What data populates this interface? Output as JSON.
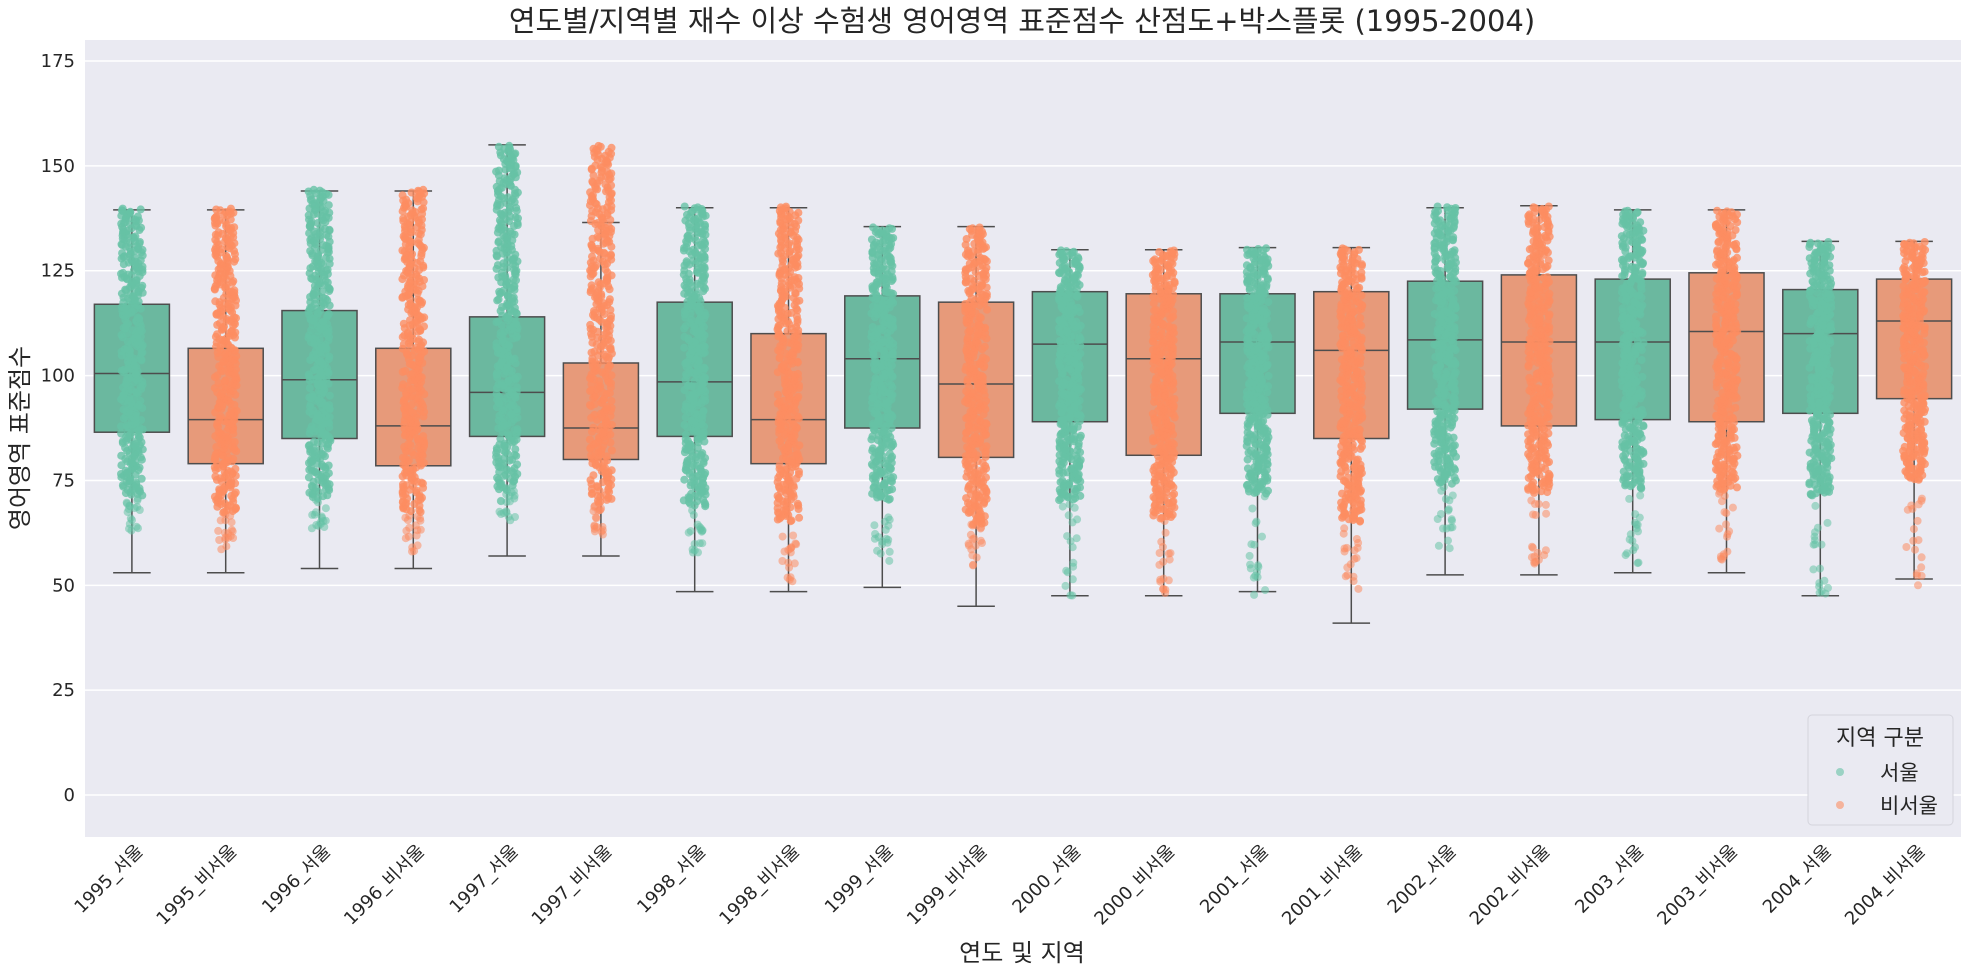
{
  "chart_data": {
    "type": "box+strip",
    "title": "연도별/지역별 재수 이상 수험생 영어영역 표준점수 산점도+박스플롯 (1995-2004)",
    "xlabel": "연도 및 지역",
    "ylabel": "영어영역 표준점수",
    "ylim": [
      -10,
      180
    ],
    "yticks": [
      0,
      25,
      50,
      75,
      100,
      125,
      150,
      175
    ],
    "grid": true,
    "legend": {
      "title": "지역 구분",
      "placement": "bottom-right",
      "entries": [
        {
          "label": "서울",
          "color": "#66c2a5"
        },
        {
          "label": "비서울",
          "color": "#fc8d62"
        }
      ]
    },
    "colors": {
      "seoul_point": "#66c2a5",
      "seoul_box": "#6bb89f",
      "nonseoul_point": "#fc8d62",
      "nonseoul_box": "#e79a7a",
      "background": "#eaeaf2",
      "whisker": "#4d4d4d"
    },
    "categories": [
      {
        "label": "1995_서울",
        "group": "서울",
        "whislo": 53,
        "q1": 86.5,
        "median": 100.5,
        "q3": 117,
        "whishi": 139.5,
        "pt_min": 62,
        "pt_max": 140
      },
      {
        "label": "1995_비서울",
        "group": "비서울",
        "whislo": 53,
        "q1": 79,
        "median": 89.5,
        "q3": 106.5,
        "whishi": 139.5,
        "pt_min": 58,
        "pt_max": 140
      },
      {
        "label": "1996_서울",
        "group": "서울",
        "whislo": 54,
        "q1": 85,
        "median": 99,
        "q3": 115.5,
        "whishi": 144,
        "pt_min": 63,
        "pt_max": 144.5
      },
      {
        "label": "1996_비서울",
        "group": "비서울",
        "whislo": 54,
        "q1": 78.5,
        "median": 88,
        "q3": 106.5,
        "whishi": 144,
        "pt_min": 56,
        "pt_max": 144.5
      },
      {
        "label": "1997_서울",
        "group": "서울",
        "whislo": 57,
        "q1": 85.5,
        "median": 96,
        "q3": 114,
        "whishi": 155,
        "pt_min": 65,
        "pt_max": 155
      },
      {
        "label": "1997_비서울",
        "group": "비서울",
        "whislo": 57,
        "q1": 80,
        "median": 87.5,
        "q3": 103,
        "whishi": 136.5,
        "pt_min": 62,
        "pt_max": 155
      },
      {
        "label": "1998_서울",
        "group": "서울",
        "whislo": 48.5,
        "q1": 85.5,
        "median": 98.5,
        "q3": 117.5,
        "whishi": 140,
        "pt_min": 57,
        "pt_max": 140.5
      },
      {
        "label": "1998_비서울",
        "group": "비서울",
        "whislo": 48.5,
        "q1": 79,
        "median": 89.5,
        "q3": 110,
        "whishi": 140,
        "pt_min": 48.5,
        "pt_max": 140.5
      },
      {
        "label": "1999_서울",
        "group": "서울",
        "whislo": 49.5,
        "q1": 87.5,
        "median": 104,
        "q3": 119,
        "whishi": 135.5,
        "pt_min": 55,
        "pt_max": 135.5
      },
      {
        "label": "1999_비서울",
        "group": "비서울",
        "whislo": 45,
        "q1": 80.5,
        "median": 98,
        "q3": 117.5,
        "whishi": 135.5,
        "pt_min": 54,
        "pt_max": 135.5
      },
      {
        "label": "2000_서울",
        "group": "서울",
        "whislo": 47.5,
        "q1": 89,
        "median": 107.5,
        "q3": 120,
        "whishi": 130,
        "pt_min": 47.5,
        "pt_max": 130
      },
      {
        "label": "2000_비서울",
        "group": "비서울",
        "whislo": 47.5,
        "q1": 81,
        "median": 104,
        "q3": 119.5,
        "whishi": 130,
        "pt_min": 47.5,
        "pt_max": 130
      },
      {
        "label": "2001_서울",
        "group": "서울",
        "whislo": 48.5,
        "q1": 91,
        "median": 108,
        "q3": 119.5,
        "whishi": 130.5,
        "pt_min": 47,
        "pt_max": 130.5
      },
      {
        "label": "2001_비서울",
        "group": "비서울",
        "whislo": 41,
        "q1": 85,
        "median": 106,
        "q3": 120,
        "whishi": 130.5,
        "pt_min": 49,
        "pt_max": 130.5
      },
      {
        "label": "2002_서울",
        "group": "서울",
        "whislo": 52.5,
        "q1": 92,
        "median": 108.5,
        "q3": 122.5,
        "whishi": 140,
        "pt_min": 58,
        "pt_max": 140.5
      },
      {
        "label": "2002_비서울",
        "group": "비서울",
        "whislo": 52.5,
        "q1": 88,
        "median": 108,
        "q3": 124,
        "whishi": 140.5,
        "pt_min": 55,
        "pt_max": 140.5
      },
      {
        "label": "2003_서울",
        "group": "서울",
        "whislo": 53,
        "q1": 89.5,
        "median": 108,
        "q3": 123,
        "whishi": 139.5,
        "pt_min": 53.5,
        "pt_max": 139.5
      },
      {
        "label": "2003_비서울",
        "group": "비서울",
        "whislo": 53,
        "q1": 89,
        "median": 110.5,
        "q3": 124.5,
        "whishi": 139.5,
        "pt_min": 53.5,
        "pt_max": 139.5
      },
      {
        "label": "2004_서울",
        "group": "서울",
        "whislo": 47.5,
        "q1": 91,
        "median": 110,
        "q3": 120.5,
        "whishi": 132,
        "pt_min": 44,
        "pt_max": 132
      },
      {
        "label": "2004_비서울",
        "group": "비서울",
        "whislo": 51.5,
        "q1": 94.5,
        "median": 113,
        "q3": 123,
        "whishi": 132,
        "pt_min": 47.5,
        "pt_max": 132
      }
    ]
  }
}
